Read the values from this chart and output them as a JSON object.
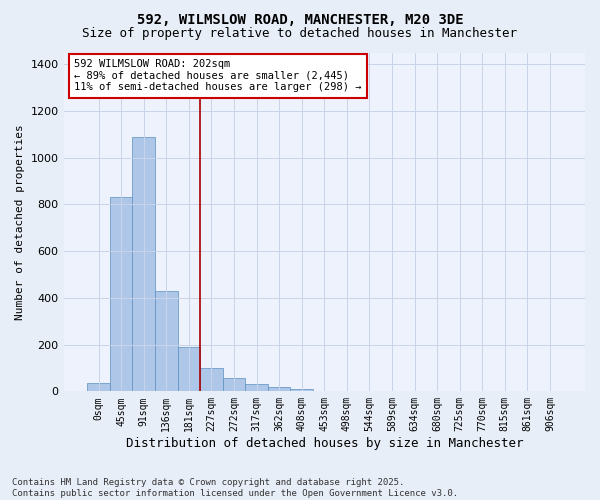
{
  "title_line1": "592, WILMSLOW ROAD, MANCHESTER, M20 3DE",
  "title_line2": "Size of property relative to detached houses in Manchester",
  "xlabel": "Distribution of detached houses by size in Manchester",
  "ylabel": "Number of detached properties",
  "bar_labels": [
    "0sqm",
    "45sqm",
    "91sqm",
    "136sqm",
    "181sqm",
    "227sqm",
    "272sqm",
    "317sqm",
    "362sqm",
    "408sqm",
    "453sqm",
    "498sqm",
    "544sqm",
    "589sqm",
    "634sqm",
    "680sqm",
    "725sqm",
    "770sqm",
    "815sqm",
    "861sqm",
    "906sqm"
  ],
  "bar_values": [
    35,
    830,
    1090,
    430,
    190,
    100,
    55,
    30,
    20,
    10,
    3,
    0,
    0,
    0,
    0,
    0,
    0,
    0,
    0,
    0,
    0
  ],
  "bar_color": "#aec6e8",
  "bar_edge_color": "#5a8fc0",
  "ylim": [
    0,
    1450
  ],
  "yticks": [
    0,
    200,
    400,
    600,
    800,
    1000,
    1200,
    1400
  ],
  "property_line_x": 4.5,
  "annotation_line1": "592 WILMSLOW ROAD: 202sqm",
  "annotation_line2": "← 89% of detached houses are smaller (2,445)",
  "annotation_line3": "11% of semi-detached houses are larger (298) →",
  "footer_line1": "Contains HM Land Registry data © Crown copyright and database right 2025.",
  "footer_line2": "Contains public sector information licensed under the Open Government Licence v3.0.",
  "background_color": "#e8eef8",
  "plot_bg_color": "#eef2fc",
  "grid_color": "#c8d4e8",
  "annotation_box_color": "#ffffff",
  "annotation_box_edge": "#cc0000",
  "red_line_color": "#aa0000",
  "title_fontsize": 10,
  "subtitle_fontsize": 9,
  "tick_fontsize": 7,
  "ylabel_fontsize": 8,
  "xlabel_fontsize": 9,
  "annotation_fontsize": 7.5,
  "footer_fontsize": 6.5
}
